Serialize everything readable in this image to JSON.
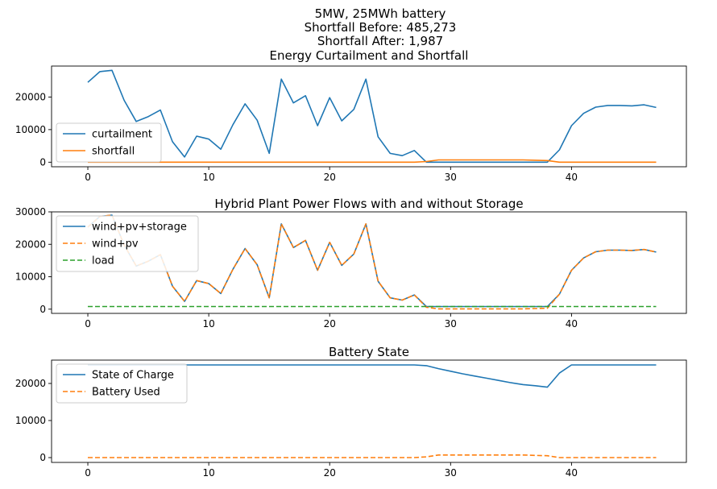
{
  "figure_title_lines": [
    "5MW, 25MWh battery",
    "Shortfall Before: 485,273",
    "Shortfall After: 1,987"
  ],
  "colors": {
    "blue": "#1f77b4",
    "orange": "#ff7f0e",
    "green": "#2ca02c"
  },
  "chart_data": [
    {
      "type": "line",
      "title": "Energy Curtailment and Shortfall",
      "xlim": [
        -3,
        49.5
      ],
      "ylim": [
        -1400,
        29500
      ],
      "xticks": [
        0,
        10,
        20,
        30,
        40
      ],
      "yticks": [
        0,
        10000,
        20000
      ],
      "legend_position": "lower-left",
      "grid": false,
      "series": [
        {
          "name": "curtailment",
          "color": "#1f77b4",
          "dash": "solid",
          "values": [
            24500,
            27800,
            28200,
            19000,
            12500,
            14000,
            16000,
            6300,
            1600,
            8000,
            7100,
            4000,
            11500,
            17900,
            12900,
            2700,
            25500,
            18200,
            20400,
            11200,
            19800,
            12700,
            16200,
            25500,
            7800,
            2700,
            2000,
            3600,
            0,
            0,
            0,
            0,
            0,
            0,
            0,
            0,
            0,
            0,
            0,
            3800,
            11200,
            15000,
            16900,
            17400,
            17400,
            17300,
            17600,
            16800
          ]
        },
        {
          "name": "shortfall",
          "color": "#ff7f0e",
          "dash": "solid",
          "values": [
            0,
            0,
            0,
            0,
            0,
            0,
            0,
            0,
            0,
            0,
            0,
            0,
            0,
            0,
            0,
            0,
            0,
            0,
            0,
            0,
            0,
            0,
            0,
            0,
            0,
            0,
            0,
            0,
            200,
            700,
            700,
            700,
            700,
            700,
            700,
            700,
            700,
            600,
            500,
            0,
            0,
            0,
            0,
            0,
            0,
            0,
            0,
            0
          ]
        }
      ]
    },
    {
      "type": "line",
      "title": "Hybrid Plant Power Flows with and without Storage",
      "xlim": [
        -3,
        49.5
      ],
      "ylim": [
        -1300,
        30000
      ],
      "xticks": [
        0,
        10,
        20,
        30,
        40
      ],
      "yticks": [
        0,
        10000,
        20000,
        30000
      ],
      "legend_position": "upper-left",
      "grid": false,
      "series": [
        {
          "name": "wind+pv+storage",
          "color": "#1f77b4",
          "dash": "solid",
          "values": [
            25300,
            28600,
            29000,
            19800,
            13300,
            14800,
            16800,
            7100,
            2400,
            8800,
            7900,
            4800,
            12300,
            18700,
            13700,
            3500,
            26300,
            19000,
            21200,
            12000,
            20600,
            13500,
            17000,
            26300,
            8600,
            3500,
            2800,
            4400,
            800,
            800,
            800,
            800,
            800,
            800,
            800,
            800,
            800,
            800,
            800,
            4600,
            12000,
            15800,
            17700,
            18200,
            18200,
            18100,
            18400,
            17600
          ]
        },
        {
          "name": "wind+pv",
          "color": "#ff7f0e",
          "dash": "dashed",
          "values": [
            25300,
            28600,
            29000,
            19800,
            13300,
            14800,
            16800,
            7100,
            2400,
            8800,
            7900,
            4800,
            12300,
            18700,
            13700,
            3500,
            26300,
            19000,
            21200,
            12000,
            20600,
            13500,
            17000,
            26300,
            8600,
            3500,
            2800,
            4400,
            600,
            100,
            100,
            100,
            100,
            100,
            100,
            100,
            100,
            200,
            300,
            4600,
            12000,
            15800,
            17700,
            18200,
            18200,
            18100,
            18400,
            17600
          ]
        },
        {
          "name": "load",
          "color": "#2ca02c",
          "dash": "dashed",
          "values": [
            800,
            800,
            800,
            800,
            800,
            800,
            800,
            800,
            800,
            800,
            800,
            800,
            800,
            800,
            800,
            800,
            800,
            800,
            800,
            800,
            800,
            800,
            800,
            800,
            800,
            800,
            800,
            800,
            800,
            800,
            800,
            800,
            800,
            800,
            800,
            800,
            800,
            800,
            800,
            800,
            800,
            800,
            800,
            800,
            800,
            800,
            800,
            800
          ]
        }
      ]
    },
    {
      "type": "line",
      "title": "Battery State",
      "xlim": [
        -3,
        49.5
      ],
      "ylim": [
        -1300,
        26300
      ],
      "xticks": [
        0,
        10,
        20,
        30,
        40
      ],
      "yticks": [
        0,
        10000,
        20000
      ],
      "legend_position": "upper-left",
      "grid": false,
      "series": [
        {
          "name": "State of Charge",
          "color": "#1f77b4",
          "dash": "solid",
          "values": [
            25000,
            25000,
            25000,
            25000,
            25000,
            25000,
            25000,
            25000,
            25000,
            25000,
            25000,
            25000,
            25000,
            25000,
            25000,
            25000,
            25000,
            25000,
            25000,
            25000,
            25000,
            25000,
            25000,
            25000,
            25000,
            25000,
            25000,
            25000,
            24800,
            24000,
            23300,
            22600,
            22000,
            21400,
            20800,
            20200,
            19700,
            19400,
            19000,
            22800,
            25000,
            25000,
            25000,
            25000,
            25000,
            25000,
            25000,
            25000
          ]
        },
        {
          "name": "Battery Used",
          "color": "#ff7f0e",
          "dash": "dashed",
          "values": [
            0,
            0,
            0,
            0,
            0,
            0,
            0,
            0,
            0,
            0,
            0,
            0,
            0,
            0,
            0,
            0,
            0,
            0,
            0,
            0,
            0,
            0,
            0,
            0,
            0,
            0,
            0,
            0,
            200,
            700,
            700,
            700,
            700,
            700,
            700,
            700,
            700,
            600,
            500,
            0,
            0,
            0,
            0,
            0,
            0,
            0,
            0,
            0
          ]
        }
      ]
    }
  ]
}
